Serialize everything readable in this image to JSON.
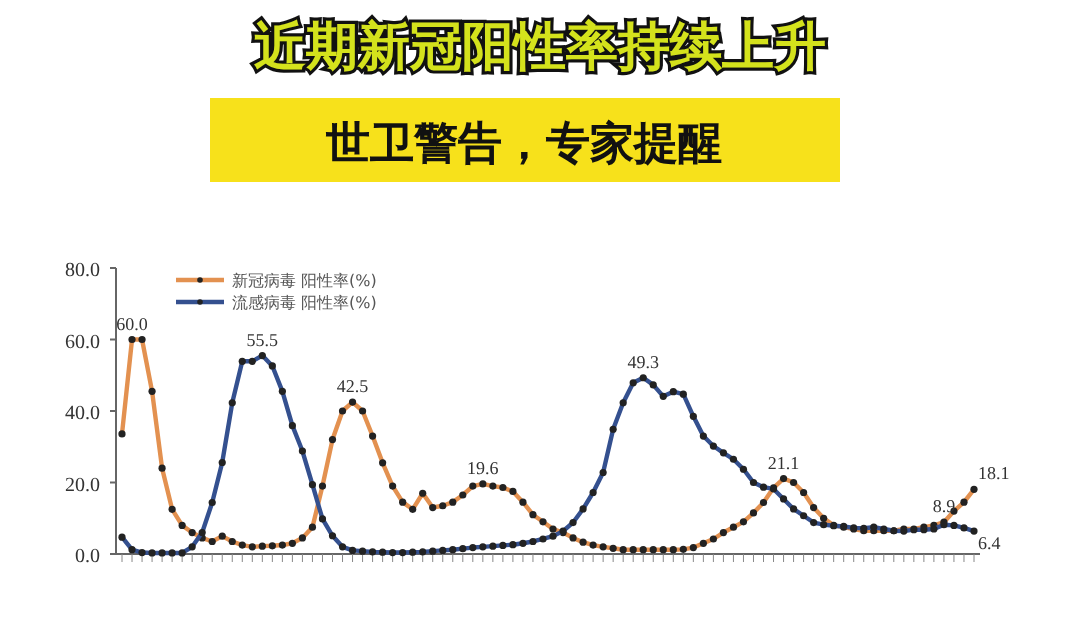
{
  "chart_data": {
    "type": "line",
    "title": "近期新冠阳性率持续上升",
    "subtitle": "世卫警告，专家提醒",
    "categories": [
      null,
      null,
      null,
      null,
      null,
      null,
      null,
      null,
      null,
      null,
      null,
      null,
      null,
      null,
      null,
      null,
      null,
      null,
      null,
      null,
      null,
      null,
      null,
      null,
      null,
      null,
      null,
      null,
      null,
      null,
      null,
      null,
      null,
      null,
      null,
      null,
      null,
      null,
      null,
      null,
      null,
      null,
      null,
      null,
      null,
      null,
      null,
      null,
      null,
      null,
      null,
      null,
      null,
      null,
      null,
      null,
      null,
      null,
      null,
      null,
      null,
      null,
      null,
      null,
      null,
      null,
      null,
      null,
      null,
      null,
      null,
      null,
      null,
      null,
      null,
      null,
      null,
      null,
      null,
      null,
      null,
      null,
      null,
      null,
      null,
      null
    ],
    "series": [
      {
        "name": "新冠病毒 阳性率(%)",
        "color": "#e39150",
        "values": [
          33.6,
          60.0,
          60,
          45.5,
          24,
          12.5,
          8,
          6,
          4.5,
          3.5,
          5,
          3.5,
          2.5,
          2,
          2.2,
          2.3,
          2.5,
          3,
          4.5,
          7.5,
          19,
          32,
          40,
          42.5,
          40,
          33,
          25.5,
          19,
          14.5,
          12.5,
          17,
          13,
          13.5,
          14.5,
          16.5,
          19,
          19.6,
          19,
          18.6,
          17.5,
          14.5,
          11,
          9,
          7,
          6,
          4.5,
          3.3,
          2.5,
          2,
          1.6,
          1.2,
          1.2,
          1.2,
          1.2,
          1.2,
          1.2,
          1.3,
          1.8,
          3,
          4.2,
          6,
          7.5,
          9,
          11.5,
          14.4,
          18.5,
          21.1,
          20,
          17.2,
          13,
          10,
          8,
          7.5,
          7,
          6.5,
          6.5,
          6.5,
          6.5,
          7,
          7,
          7.5,
          8,
          8.9,
          12,
          14.5,
          18.1
        ],
        "value_labels": [
          null,
          "60.0",
          null,
          null,
          null,
          null,
          null,
          null,
          null,
          null,
          null,
          null,
          null,
          null,
          null,
          null,
          null,
          null,
          null,
          null,
          null,
          null,
          null,
          "42.5",
          null,
          null,
          null,
          null,
          null,
          null,
          null,
          null,
          null,
          null,
          null,
          null,
          "19.6",
          null,
          null,
          null,
          null,
          null,
          null,
          null,
          null,
          null,
          null,
          null,
          null,
          null,
          null,
          null,
          null,
          null,
          null,
          null,
          null,
          null,
          null,
          null,
          null,
          null,
          null,
          null,
          null,
          null,
          "21.1",
          null,
          null,
          null,
          null,
          null,
          null,
          null,
          null,
          null,
          null,
          null,
          null,
          null,
          null,
          null,
          "8.9",
          null,
          null,
          "18.1"
        ]
      },
      {
        "name": "流感病毒 阳性率(%)",
        "color": "#34508f",
        "values": [
          4.7,
          1.2,
          0.4,
          0.3,
          0.3,
          0.3,
          0.3,
          2,
          6,
          14.4,
          25.6,
          42.3,
          53.9,
          53.9,
          55.5,
          52.6,
          45.5,
          35.9,
          28.8,
          19.4,
          9.8,
          5.1,
          2,
          1,
          0.8,
          0.6,
          0.5,
          0.4,
          0.4,
          0.5,
          0.6,
          0.8,
          1,
          1.2,
          1.5,
          1.8,
          2,
          2.2,
          2.4,
          2.6,
          3,
          3.5,
          4.2,
          5,
          6.4,
          8.8,
          12.6,
          17.2,
          22.8,
          34.9,
          42.3,
          47.9,
          49.3,
          47.3,
          44.1,
          45.4,
          44.7,
          38.5,
          33,
          30.2,
          28.3,
          26.5,
          23.7,
          20,
          18.7,
          18.2,
          15.4,
          12.6,
          10.7,
          8.8,
          8.2,
          7.9,
          7.7,
          7.3,
          7.2,
          7.5,
          7,
          6.5,
          6.4,
          6.8,
          6.8,
          7,
          8.2,
          8,
          7.3,
          6.4
        ],
        "value_labels": [
          null,
          null,
          null,
          null,
          null,
          null,
          null,
          null,
          null,
          null,
          null,
          null,
          null,
          null,
          "55.5",
          null,
          null,
          null,
          null,
          null,
          null,
          null,
          null,
          null,
          null,
          null,
          null,
          null,
          null,
          null,
          null,
          null,
          null,
          null,
          null,
          null,
          null,
          null,
          null,
          null,
          null,
          null,
          null,
          null,
          null,
          null,
          null,
          null,
          null,
          null,
          null,
          null,
          "49.3",
          null,
          null,
          null,
          null,
          null,
          null,
          null,
          null,
          null,
          null,
          null,
          null,
          null,
          null,
          null,
          null,
          null,
          null,
          null,
          null,
          null,
          null,
          null,
          null,
          null,
          null,
          null,
          null,
          null,
          null,
          null,
          null,
          "6.4"
        ]
      }
    ],
    "ylim": [
      0,
      80
    ],
    "yticks": [
      {
        "value": 0,
        "label": "0.0"
      },
      {
        "value": 20,
        "label": "20.0"
      },
      {
        "value": 40,
        "label": "40.0"
      },
      {
        "value": 60,
        "label": "60.0"
      },
      {
        "value": 80,
        "label": "80.0"
      }
    ],
    "marker": "circle",
    "line_style": "solid",
    "grid": false,
    "legend": "top left"
  }
}
